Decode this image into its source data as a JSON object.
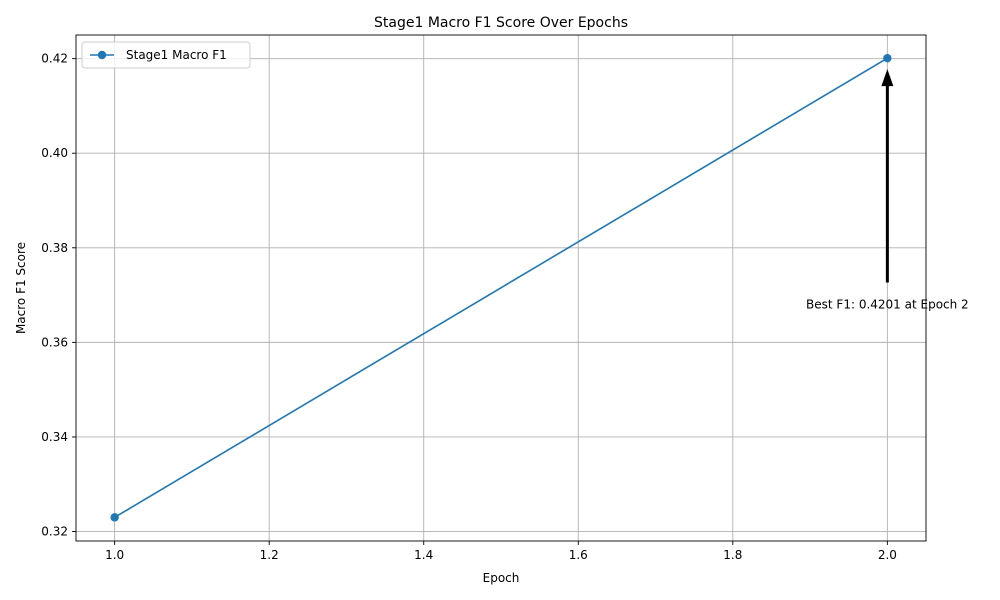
{
  "chart_data": {
    "type": "line",
    "title": "Stage1 Macro F1 Score Over Epochs",
    "xlabel": "Epoch",
    "ylabel": "Macro F1 Score",
    "xlim": [
      0.95,
      2.05
    ],
    "ylim": [
      0.318,
      0.425
    ],
    "x_ticks": [
      1.0,
      1.2,
      1.4,
      1.6,
      1.8,
      2.0
    ],
    "x_tick_labels": [
      "1.0",
      "1.2",
      "1.4",
      "1.6",
      "1.8",
      "2.0"
    ],
    "y_ticks": [
      0.32,
      0.34,
      0.36,
      0.38,
      0.4,
      0.42
    ],
    "y_tick_labels": [
      "0.32",
      "0.34",
      "0.36",
      "0.38",
      "0.40",
      "0.42"
    ],
    "grid": true,
    "legend_position": "top-left",
    "series": [
      {
        "name": "Stage1 Macro F1",
        "color": "#1f77b4",
        "marker": "circle",
        "x": [
          1,
          2
        ],
        "y": [
          0.323,
          0.4201
        ]
      }
    ],
    "annotations": [
      {
        "text": "Best F1: 0.4201 at Epoch 2",
        "x": 2,
        "y": 0.4201,
        "text_x": 2,
        "text_y": 0.368,
        "arrow": true
      }
    ]
  }
}
